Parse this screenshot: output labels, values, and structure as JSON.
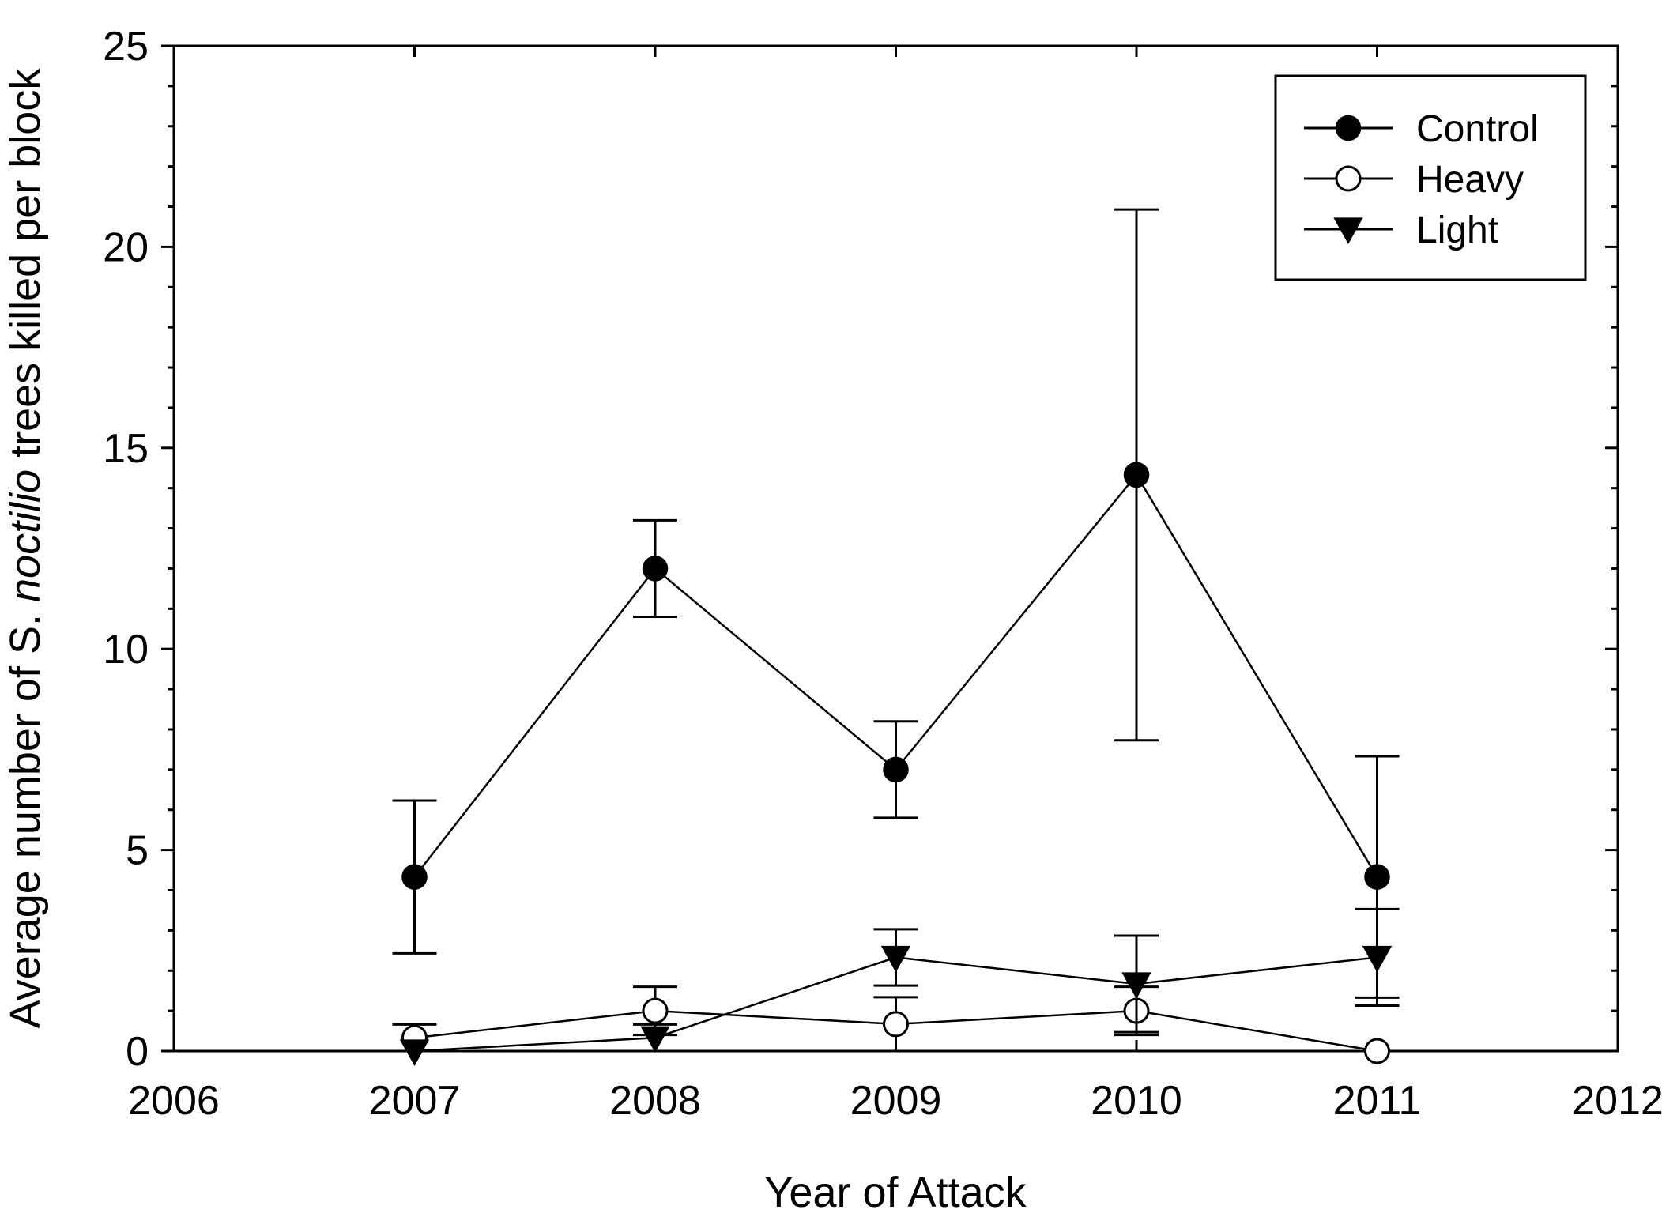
{
  "chart_data": {
    "type": "line",
    "xlabel": "Year of Attack",
    "ylabel_parts": [
      {
        "text": "Average number of S. ",
        "italic": false
      },
      {
        "text": "noctilio",
        "italic": true
      },
      {
        "text": " trees killed per block",
        "italic": false
      }
    ],
    "xlim": [
      2006,
      2012
    ],
    "ylim": [
      0,
      25
    ],
    "x_ticks": [
      2006,
      2007,
      2008,
      2009,
      2010,
      2011,
      2012
    ],
    "y_ticks": [
      0,
      5,
      10,
      15,
      20,
      25
    ],
    "y_minor_step": 1,
    "grid": false,
    "legend_position": "top-right",
    "error_bars": true,
    "series": [
      {
        "name": "Control",
        "marker": "filled-circle",
        "x": [
          2007,
          2008,
          2009,
          2010,
          2011
        ],
        "y": [
          4.33,
          12.0,
          7.0,
          14.33,
          4.33
        ],
        "err": [
          1.9,
          1.2,
          1.2,
          6.6,
          3.0
        ]
      },
      {
        "name": "Heavy",
        "marker": "open-circle",
        "x": [
          2007,
          2008,
          2009,
          2010,
          2011
        ],
        "y": [
          0.33,
          1.0,
          0.67,
          1.0,
          0.0
        ],
        "err": [
          0.33,
          0.6,
          0.67,
          0.6,
          0.0
        ]
      },
      {
        "name": "Light",
        "marker": "filled-triangle-down",
        "x": [
          2007,
          2008,
          2009,
          2010,
          2011
        ],
        "y": [
          0.0,
          0.33,
          2.33,
          1.67,
          2.33
        ],
        "err": [
          0.0,
          0.33,
          0.7,
          1.2,
          1.2
        ]
      }
    ]
  },
  "colors": {
    "ink": "#000000",
    "background": "#ffffff"
  }
}
